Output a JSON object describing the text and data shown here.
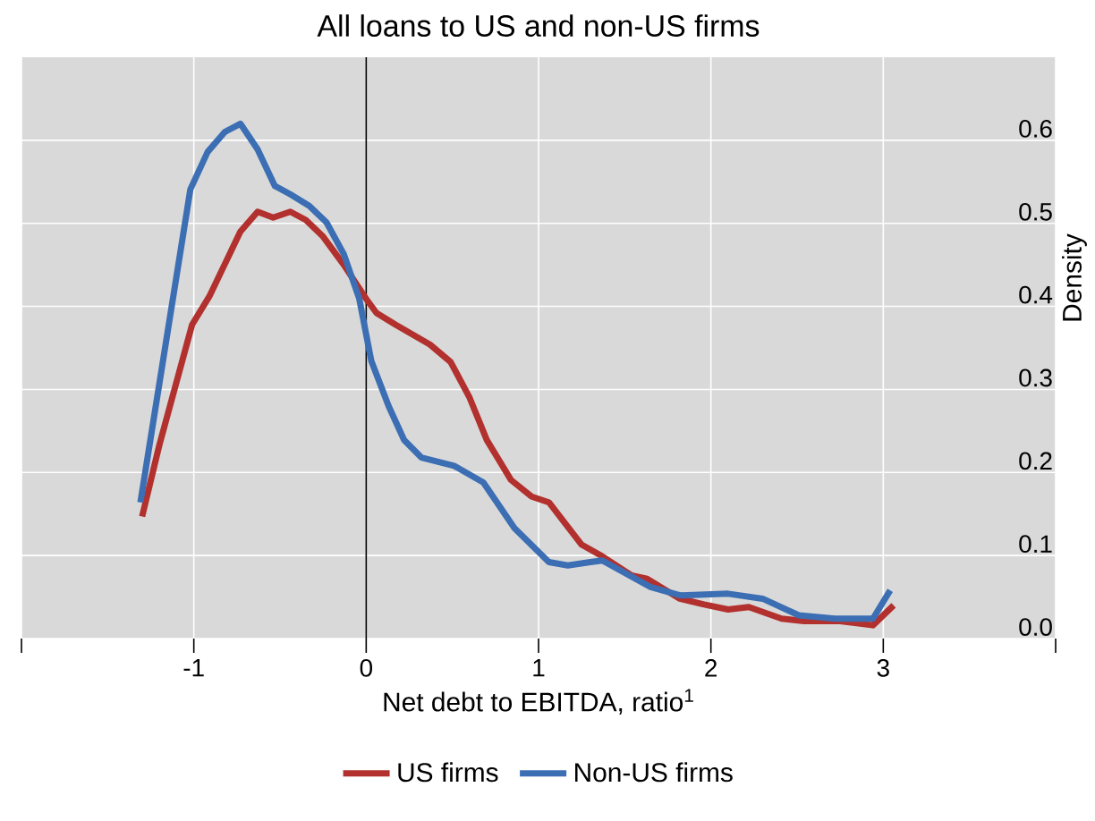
{
  "chart_data": {
    "type": "line",
    "title": "All loans to US and non-US firms",
    "xlabel": "Net debt to EBITDA, ratio$^{1}$",
    "ylabel": "Density",
    "xlim": [
      -2,
      4
    ],
    "xticks": [
      {
        "value": -2,
        "label": null
      },
      -1,
      0,
      1,
      2,
      3,
      {
        "value": 4,
        "label": null
      }
    ],
    "ylim": [
      0,
      0.7
    ],
    "yticks": [
      {
        "value": 0,
        "label": "0.0"
      },
      0.1,
      0.2,
      0.3,
      0.4,
      0.5,
      0.6
    ],
    "grid": true,
    "legend": "bottom",
    "marker": "none",
    "line_style": "solid",
    "ref_lines": [
      {
        "axis": "x",
        "value": 0,
        "color": "#000000"
      }
    ],
    "series": [
      {
        "name": "US firms",
        "color": "#b2302d",
        "x": [
          -1.3,
          -1.2,
          -1.01,
          -0.91,
          -0.73,
          -0.63,
          -0.54,
          -0.44,
          -0.35,
          -0.25,
          -0.13,
          0.0,
          0.06,
          0.17,
          0.37,
          0.49,
          0.6,
          0.7,
          0.84,
          0.96,
          1.06,
          1.25,
          1.37,
          1.54,
          1.63,
          1.82,
          1.96,
          2.1,
          2.22,
          2.41,
          2.54,
          2.75,
          2.94,
          3.06
        ],
        "values": [
          0.147,
          0.233,
          0.378,
          0.412,
          0.49,
          0.514,
          0.507,
          0.514,
          0.504,
          0.484,
          0.45,
          0.409,
          0.392,
          0.378,
          0.354,
          0.333,
          0.29,
          0.239,
          0.191,
          0.171,
          0.164,
          0.113,
          0.099,
          0.076,
          0.072,
          0.048,
          0.041,
          0.035,
          0.038,
          0.024,
          0.021,
          0.021,
          0.016,
          0.04
        ]
      },
      {
        "name": "Non-US firms",
        "color": "#3c6eb4",
        "x": [
          -1.31,
          -1.02,
          -0.92,
          -0.82,
          -0.73,
          -0.63,
          -0.53,
          -0.44,
          -0.33,
          -0.23,
          -0.13,
          -0.04,
          0.03,
          0.13,
          0.22,
          0.32,
          0.51,
          0.68,
          0.86,
          1.06,
          1.17,
          1.3,
          1.37,
          1.65,
          1.82,
          2.1,
          2.3,
          2.51,
          2.72,
          2.94,
          3.04
        ],
        "values": [
          0.164,
          0.541,
          0.586,
          0.61,
          0.62,
          0.589,
          0.545,
          0.535,
          0.521,
          0.501,
          0.463,
          0.409,
          0.334,
          0.28,
          0.239,
          0.218,
          0.208,
          0.188,
          0.133,
          0.092,
          0.088,
          0.092,
          0.094,
          0.062,
          0.052,
          0.054,
          0.048,
          0.028,
          0.024,
          0.024,
          0.058
        ]
      }
    ]
  }
}
